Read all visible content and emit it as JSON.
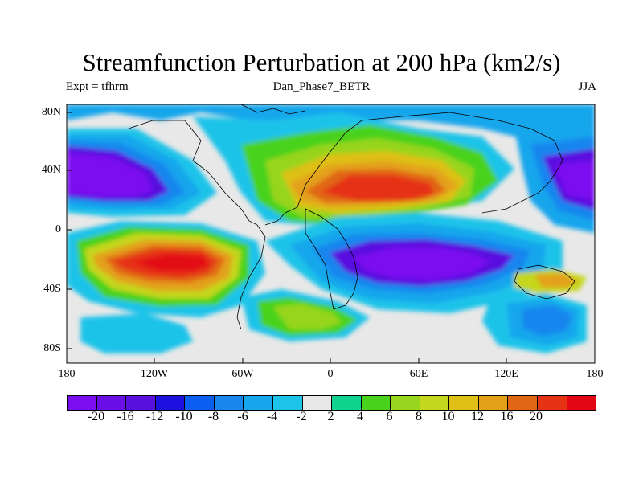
{
  "title": "Streamfunction Perturbation at 200 hPa (km2/s)",
  "left_label": "Expt = tfhrm",
  "center_label": "Dan_Phase7_BETR",
  "right_label": "JJA",
  "y_ticks": [
    "80N",
    "40N",
    "0",
    "40S",
    "80S"
  ],
  "x_ticks": [
    "180",
    "120W",
    "60W",
    "0",
    "60E",
    "120E",
    "180"
  ],
  "colorbar": {
    "colors": [
      "#7b0ef0",
      "#6a10e6",
      "#5a10df",
      "#1d11e0",
      "#0a5ff0",
      "#1986ee",
      "#18a6ec",
      "#1ec3e9",
      "#e8e8e8",
      "#10d38f",
      "#49d21b",
      "#97d51f",
      "#c5d61f",
      "#dec017",
      "#e3a11a",
      "#e16613",
      "#e53313",
      "#e30716"
    ],
    "labels": [
      "-20",
      "-16",
      "-12",
      "-10",
      "-8",
      "-6",
      "-4",
      "-2",
      "2",
      "4",
      "6",
      "8",
      "10",
      "12",
      "16",
      "20"
    ]
  },
  "map_data": {
    "projection": "cylindrical-equidistant",
    "lon_range": [
      -180,
      180
    ],
    "lat_range": [
      -90,
      90
    ],
    "variable": "streamfunction perturbation",
    "units": "km2/s",
    "level": "200 hPa"
  }
}
